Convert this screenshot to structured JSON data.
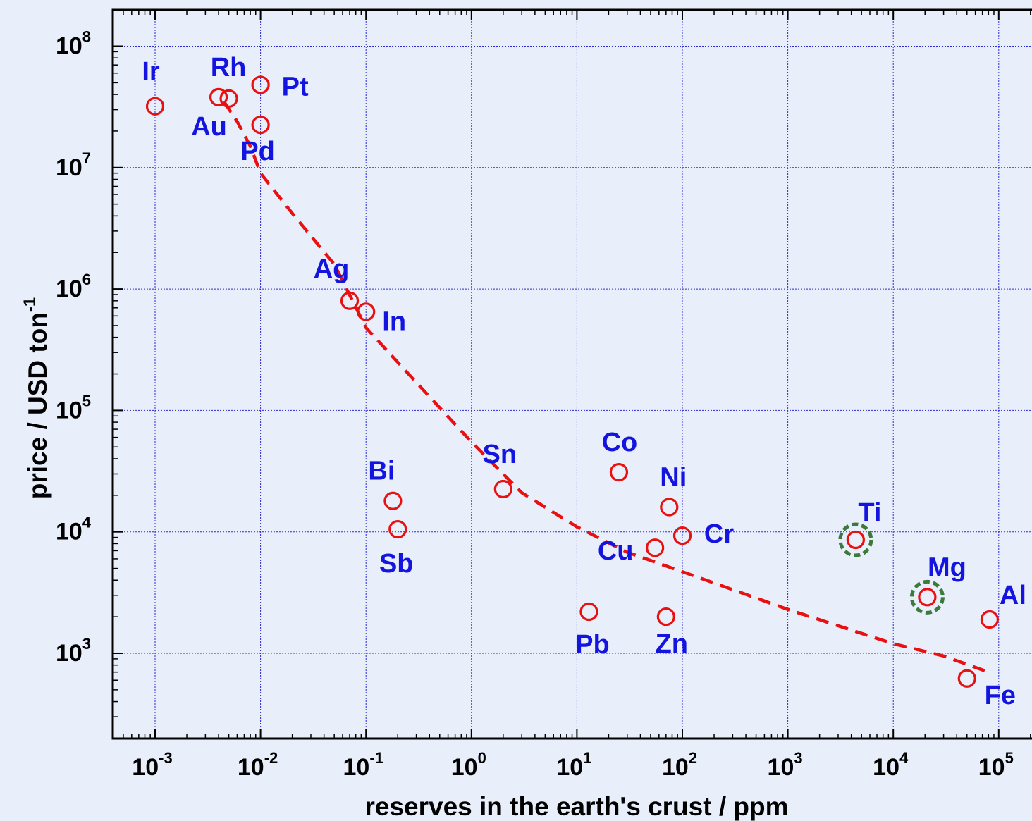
{
  "chart_data": {
    "type": "scatter",
    "title": "",
    "xlabel": "reserves in the earth's crust / ppm",
    "ylabel": "price / USD ton",
    "ylabel_exponent": "-1",
    "x_scale": "log",
    "y_scale": "log",
    "xlim": [
      0.0003,
      300000
    ],
    "ylim": [
      200,
      200000000
    ],
    "x_ticks": [
      {
        "value": 0.001,
        "base": "10",
        "exp": "-3"
      },
      {
        "value": 0.01,
        "base": "10",
        "exp": "-2"
      },
      {
        "value": 0.1,
        "base": "10",
        "exp": "-1"
      },
      {
        "value": 1,
        "base": "10",
        "exp": "0"
      },
      {
        "value": 10,
        "base": "10",
        "exp": "1"
      },
      {
        "value": 100,
        "base": "10",
        "exp": "2"
      },
      {
        "value": 1000,
        "base": "10",
        "exp": "3"
      },
      {
        "value": 10000,
        "base": "10",
        "exp": "4"
      },
      {
        "value": 100000,
        "base": "10",
        "exp": "5"
      }
    ],
    "y_ticks": [
      {
        "value": 1000,
        "base": "10",
        "exp": "3"
      },
      {
        "value": 10000,
        "base": "10",
        "exp": "4"
      },
      {
        "value": 100000,
        "base": "10",
        "exp": "5"
      },
      {
        "value": 1000000,
        "base": "10",
        "exp": "6"
      },
      {
        "value": 10000000,
        "base": "10",
        "exp": "7"
      },
      {
        "value": 100000000,
        "base": "10",
        "exp": "8"
      }
    ],
    "grid": true,
    "marker_color": "#e81010",
    "label_color": "#1414e0",
    "trend_color": "#e81010",
    "highlight_color": "#3a7a3a",
    "points": [
      {
        "label": "Ir",
        "x": 0.001,
        "y": 32000000
      },
      {
        "label": "Rh",
        "x": 0.004,
        "y": 38000000
      },
      {
        "label": "Au",
        "x": 0.005,
        "y": 37000000
      },
      {
        "label": "Pt",
        "x": 0.01,
        "y": 48000000
      },
      {
        "label": "Pd",
        "x": 0.01,
        "y": 22500000
      },
      {
        "label": "Ag",
        "x": 0.07,
        "y": 800000
      },
      {
        "label": "In",
        "x": 0.1,
        "y": 650000
      },
      {
        "label": "Bi",
        "x": 0.18,
        "y": 18000
      },
      {
        "label": "Sb",
        "x": 0.2,
        "y": 10500
      },
      {
        "label": "Sn",
        "x": 2,
        "y": 22500
      },
      {
        "label": "Pb",
        "x": 13,
        "y": 2200
      },
      {
        "label": "Co",
        "x": 25,
        "y": 31000
      },
      {
        "label": "Cu",
        "x": 55,
        "y": 7400
      },
      {
        "label": "Ni",
        "x": 75,
        "y": 16000
      },
      {
        "label": "Zn",
        "x": 70,
        "y": 2000
      },
      {
        "label": "Cr",
        "x": 100,
        "y": 9300
      },
      {
        "label": "Ti",
        "x": 4400,
        "y": 8600,
        "highlighted": true
      },
      {
        "label": "Mg",
        "x": 21000,
        "y": 2900,
        "highlighted": true
      },
      {
        "label": "Al",
        "x": 82000,
        "y": 1900
      },
      {
        "label": "Fe",
        "x": 50000,
        "y": 620
      }
    ],
    "trend_line": {
      "style": "dashed",
      "points": [
        [
          0.0045,
          35000000
        ],
        [
          0.006,
          24000000
        ],
        [
          0.008,
          15000000
        ],
        [
          0.01,
          9000000
        ],
        [
          0.02,
          4200000
        ],
        [
          0.05,
          1600000
        ],
        [
          0.1,
          480000
        ],
        [
          0.3,
          170000
        ],
        [
          1,
          55000
        ],
        [
          3,
          21000
        ],
        [
          10,
          11000
        ],
        [
          30,
          6800
        ],
        [
          100,
          4700
        ],
        [
          1000,
          2300
        ],
        [
          10000,
          1200
        ],
        [
          30000,
          950
        ],
        [
          80000,
          700
        ]
      ]
    }
  }
}
